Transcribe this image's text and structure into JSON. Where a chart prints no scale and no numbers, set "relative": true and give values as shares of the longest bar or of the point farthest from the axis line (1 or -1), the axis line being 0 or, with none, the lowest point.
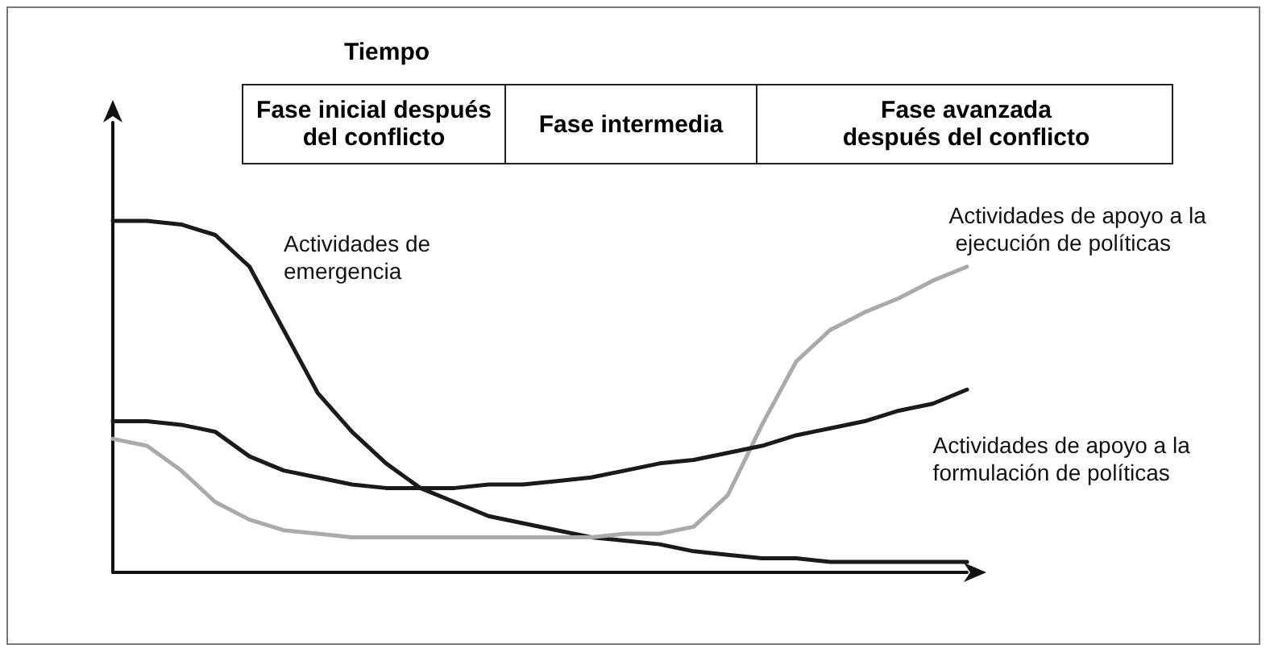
{
  "chart_data": {
    "type": "line",
    "relative": true,
    "title": "Tiempo",
    "annotations": [
      "Fase inicial después del conflicto",
      "Fase intermedia",
      "Fase avanzada después del conflicto"
    ],
    "categories": [
      null,
      null,
      null,
      null,
      null,
      null,
      null,
      null,
      null,
      null,
      null,
      null,
      null,
      null,
      null,
      null,
      null,
      null,
      null,
      null,
      null,
      null,
      null,
      null,
      null,
      null
    ],
    "series": [
      {
        "name": "Actividades de emergencia",
        "color": "#1a1a1a",
        "values": [
          1.0,
          1.0,
          0.99,
          0.96,
          0.87,
          0.69,
          0.51,
          0.4,
          0.31,
          0.24,
          0.2,
          0.16,
          0.14,
          0.12,
          0.1,
          0.09,
          0.08,
          0.06,
          0.05,
          0.04,
          0.04,
          0.03,
          0.03,
          0.03,
          0.03,
          0.03
        ]
      },
      {
        "name": "Actividades de apoyo a la ejecución de políticas",
        "color": "#aaaaaa",
        "values": [
          0.38,
          0.36,
          0.29,
          0.2,
          0.15,
          0.12,
          0.11,
          0.1,
          0.1,
          0.1,
          0.1,
          0.1,
          0.1,
          0.1,
          0.1,
          0.11,
          0.11,
          0.13,
          0.22,
          0.42,
          0.6,
          0.69,
          0.74,
          0.78,
          0.83,
          0.87
        ]
      },
      {
        "name": "Actividades de apoyo a la formulación de políticas",
        "color": "#1a1a1a",
        "values": [
          0.43,
          0.43,
          0.42,
          0.4,
          0.33,
          0.29,
          0.27,
          0.25,
          0.24,
          0.24,
          0.24,
          0.25,
          0.25,
          0.26,
          0.27,
          0.29,
          0.31,
          0.32,
          0.34,
          0.36,
          0.39,
          0.41,
          0.43,
          0.46,
          0.48,
          0.52
        ]
      }
    ],
    "legend": false,
    "grid": false,
    "marker": "none",
    "line_style": "solid"
  }
}
